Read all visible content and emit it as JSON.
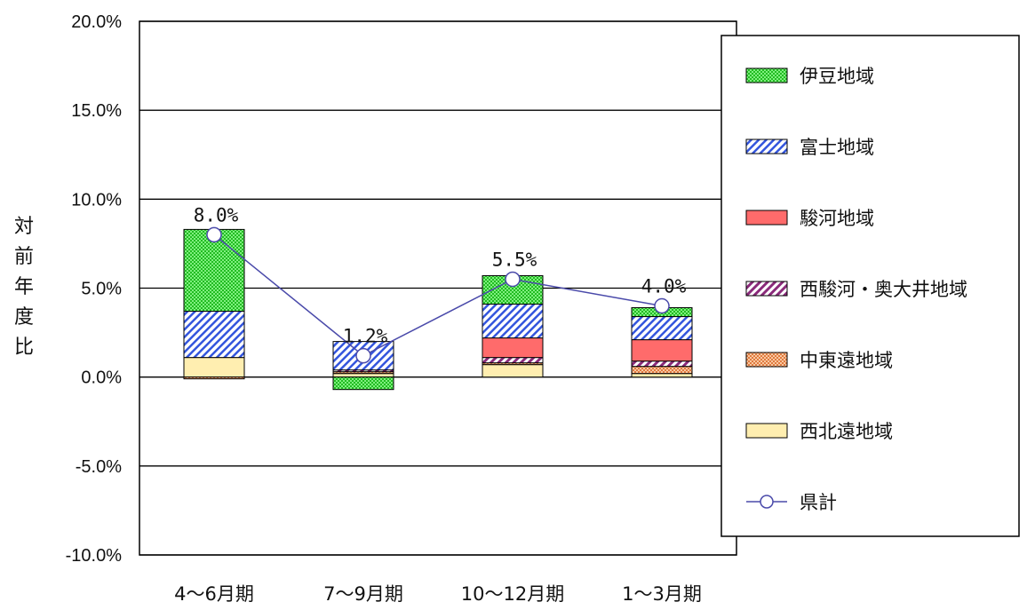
{
  "chart_data": {
    "type": "bar",
    "stacked": true,
    "categories": [
      "4～6月期",
      "7～9月期",
      "10～12月期",
      "1～3月期"
    ],
    "ylabel": "対前年度比",
    "ylim": [
      -10,
      20
    ],
    "y_ticks": [
      "20.0%",
      "15.0%",
      "10.0%",
      "5.0%",
      "0.0%",
      "-5.0%",
      "-10.0%"
    ],
    "grid": true,
    "legend_position": "right",
    "series": [
      {
        "name": "伊豆地域",
        "values": [
          4.6,
          -0.7,
          1.6,
          0.5
        ],
        "color": "#33dd33",
        "pattern": "green-dots"
      },
      {
        "name": "富士地域",
        "values": [
          2.6,
          1.6,
          1.9,
          1.3
        ],
        "color": "#3355dd",
        "pattern": "blue-hatch"
      },
      {
        "name": "駿河地域",
        "values": [
          0.0,
          0.0,
          1.1,
          1.2
        ],
        "color": "#ff6b6b",
        "pattern": "red-solid"
      },
      {
        "name": "西駿河・奥大井地域",
        "values": [
          0.0,
          0.1,
          0.3,
          0.3
        ],
        "color": "#8a2a7a",
        "pattern": "purple-hatch"
      },
      {
        "name": "中東遠地域",
        "values": [
          -0.1,
          0.1,
          0.1,
          0.4
        ],
        "color": "#f0a878",
        "pattern": "orange-dots"
      },
      {
        "name": "西北遠地域",
        "values": [
          1.1,
          0.2,
          0.7,
          0.2
        ],
        "color": "#ffe9a8",
        "pattern": "yellow-solid"
      }
    ],
    "line_series": {
      "name": "県計",
      "values": [
        8.0,
        1.2,
        5.5,
        4.0
      ],
      "labels": [
        "8.0%",
        "1.2%",
        "5.5%",
        "4.0%"
      ],
      "color": "#4a4aaa"
    }
  }
}
